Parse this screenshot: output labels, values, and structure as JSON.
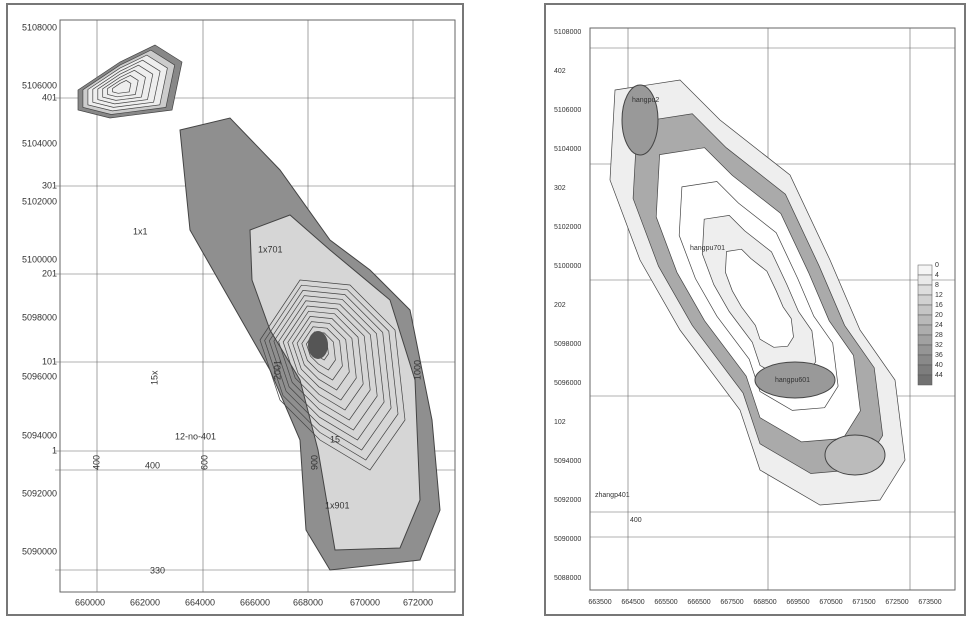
{
  "left_map": {
    "y_labels": [
      "5108000",
      "5106000",
      "401",
      "5104000",
      "301",
      "5102000",
      "5100000",
      "201",
      "5098000",
      "101",
      "5096000",
      "5094000",
      "1",
      "5092000",
      "5090000"
    ],
    "x_labels": [
      "660000",
      "662000",
      "664000",
      "666000",
      "668000",
      "670000",
      "672000"
    ],
    "annotations": [
      "1x1",
      "1x701",
      "12-no-401",
      "1x901",
      "15",
      "15x",
      "400",
      "600",
      "2001",
      "900",
      "1000",
      "330",
      "400"
    ]
  },
  "right_map": {
    "y_labels": [
      "5108000",
      "402",
      "5106000",
      "5104000",
      "302",
      "5102000",
      "5100000",
      "202",
      "5098000",
      "5096000",
      "102",
      "5094000",
      "5092000",
      "5090000",
      "5088000"
    ],
    "x_labels": [
      "663500",
      "664500",
      "665500",
      "666500",
      "667500",
      "668500",
      "669500",
      "670500",
      "671500",
      "672500",
      "673500"
    ],
    "legend": [
      "0",
      "4",
      "8",
      "12",
      "16",
      "20",
      "24",
      "28",
      "32",
      "36",
      "40",
      "44"
    ],
    "annotations": [
      "hangpu2",
      "hangpu701",
      "hangpu601",
      "zhangp401",
      "400"
    ]
  }
}
